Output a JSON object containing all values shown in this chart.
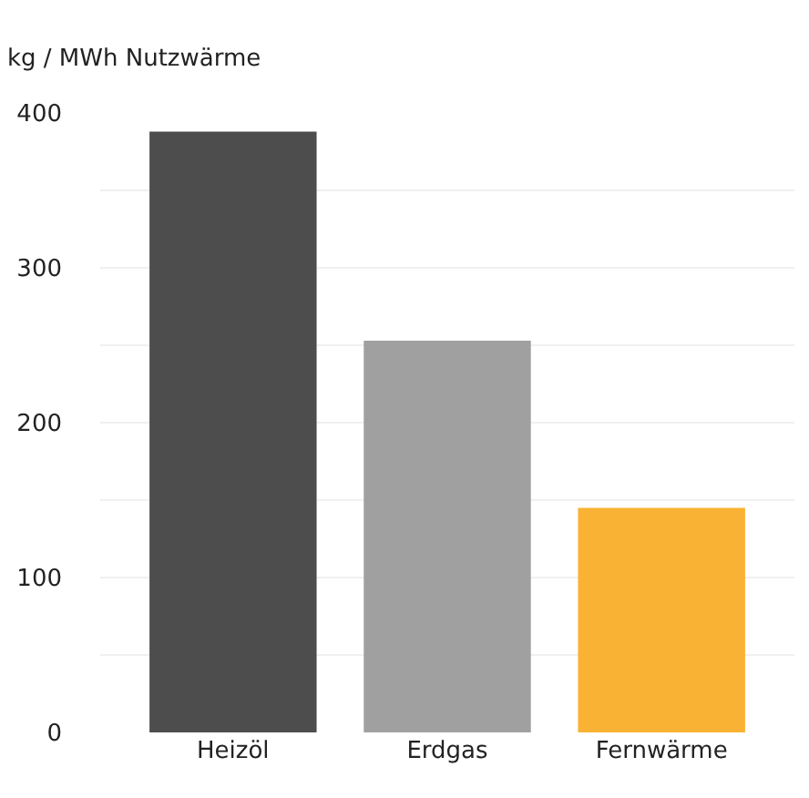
{
  "chart_data": {
    "type": "bar",
    "ylabel": "kg / MWh Nutzwärme",
    "categories": [
      "Heizöl",
      "Erdgas",
      "Fernwärme"
    ],
    "values": [
      388,
      253,
      145
    ],
    "colors": [
      "#4d4d4d",
      "#a0a0a0",
      "#f9b233"
    ],
    "ylim": [
      0,
      400
    ],
    "yticks": [
      0,
      {
        "value": 50,
        "label": null
      },
      100,
      {
        "value": 150,
        "label": null
      },
      200,
      {
        "value": 250,
        "label": null
      },
      300,
      {
        "value": 350,
        "label": null
      },
      400
    ],
    "grid": "y"
  }
}
